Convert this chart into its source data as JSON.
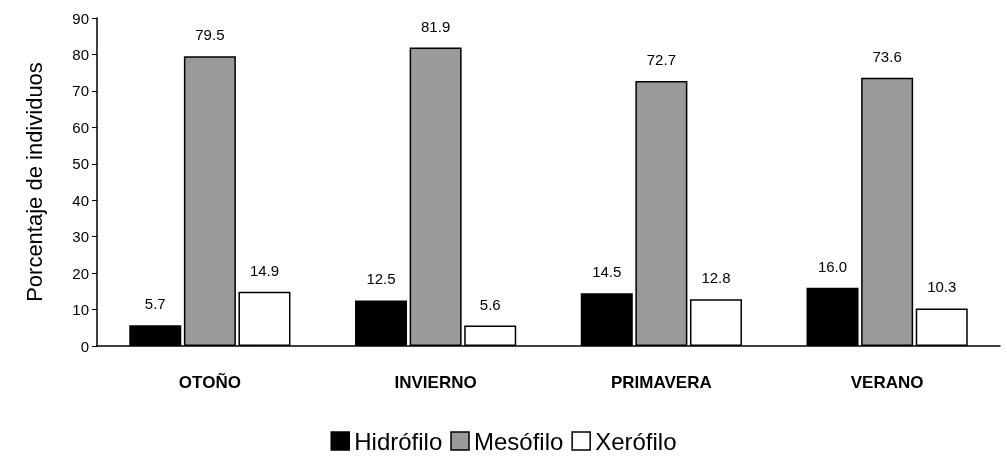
{
  "chart_data": {
    "type": "bar",
    "ylabel": "Porcentaje de individuos",
    "categories": [
      "OTOÑO",
      "INVIERNO",
      "PRIMAVERA",
      "VERANO"
    ],
    "series": [
      {
        "name": "Hidrófilo",
        "color": "#000000",
        "values": [
          5.7,
          12.5,
          14.5,
          16.0
        ],
        "value_labels": [
          "5.7",
          "12.5",
          "14.5",
          "16.0"
        ]
      },
      {
        "name": "Mesófilo",
        "color": "#9a9a9a",
        "values": [
          79.5,
          81.9,
          72.7,
          73.6
        ]
      },
      {
        "name": "Xerófilo",
        "color": "#ffffff",
        "values": [
          14.9,
          5.6,
          12.8,
          10.3
        ]
      }
    ],
    "ylim": [
      0,
      90
    ],
    "yticks": [
      0,
      10,
      20,
      30,
      40,
      50,
      60,
      70,
      80,
      90
    ],
    "data_labels": true,
    "grid": false,
    "legend": "bottom"
  }
}
